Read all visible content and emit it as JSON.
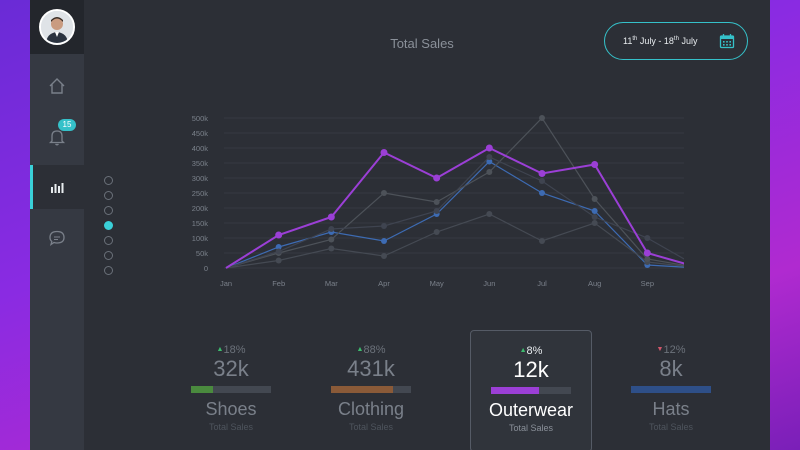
{
  "header": {
    "title": "Total Sales",
    "date_range": {
      "start_day": "11",
      "start_suffix": "th",
      "start_month": "July",
      "sep": " - ",
      "end_day": "18",
      "end_suffix": "th",
      "end_month": "July"
    }
  },
  "sidebar": {
    "items": [
      {
        "name": "home",
        "icon": "home-icon"
      },
      {
        "name": "notifications",
        "icon": "bell-icon",
        "badge": "15"
      },
      {
        "name": "analytics",
        "icon": "bar-chart-icon",
        "active": true
      },
      {
        "name": "messages",
        "icon": "chat-icon"
      }
    ]
  },
  "pager": {
    "count": 7,
    "active_index": 3
  },
  "colors": {
    "accent": "#3ad0d8",
    "purple": "#9b3fd6",
    "green": "#3dbb6e",
    "red": "#d0566a"
  },
  "chart_data": {
    "type": "line",
    "categories": [
      "Jan",
      "Feb",
      "Mar",
      "Apr",
      "May",
      "Jun",
      "Jul",
      "Aug",
      "Sep",
      "Dec"
    ],
    "yticks": [
      "0",
      "50k",
      "100k",
      "150k",
      "200k",
      "250k",
      "300k",
      "350k",
      "400k",
      "450k",
      "500k"
    ],
    "ylabels": [
      "0",
      "50k",
      "100k",
      "150k",
      "200k",
      "250k",
      "300k",
      "350k",
      "400k",
      "450k",
      "500k"
    ],
    "ylim": [
      0,
      500000
    ],
    "grid": true,
    "series": [
      {
        "color": "#3d6bb3",
        "values": [
          0,
          70000,
          120000,
          90000,
          180000,
          355000,
          250000,
          190000,
          10000,
          0
        ]
      },
      {
        "color": "#454a53",
        "values": [
          0,
          25000,
          65000,
          40000,
          120000,
          180000,
          90000,
          150000,
          20000,
          0
        ]
      },
      {
        "color": "#4d5259",
        "values": [
          0,
          50000,
          95000,
          250000,
          220000,
          320000,
          500000,
          230000,
          30000,
          0
        ]
      },
      {
        "color": "#3f4450",
        "values": [
          0,
          55000,
          130000,
          140000,
          190000,
          370000,
          290000,
          170000,
          100000,
          0
        ]
      },
      {
        "color": "#9b3fd6",
        "values": [
          0,
          110000,
          170000,
          385000,
          300000,
          400000,
          315000,
          345000,
          50000,
          0
        ]
      }
    ]
  },
  "stats": [
    {
      "pct": "18%",
      "trend": "up",
      "value": "32k",
      "name": "Shoes",
      "sub": "Total Sales",
      "color": "#4a8a3e",
      "fill": 0.28
    },
    {
      "pct": "88%",
      "trend": "up",
      "value": "431k",
      "name": "Clothing",
      "sub": "Total Sales",
      "color": "#8a5a38",
      "fill": 0.78
    },
    {
      "pct": "8%",
      "trend": "up",
      "value": "12k",
      "name": "Outerwear",
      "sub": "Total Sales",
      "color": "#9b3fd6",
      "fill": 0.6,
      "selected": true
    },
    {
      "pct": "12%",
      "trend": "down",
      "value": "8k",
      "name": "Hats",
      "sub": "Total Sales",
      "color": "#2e4f88",
      "fill": 1.0
    }
  ]
}
